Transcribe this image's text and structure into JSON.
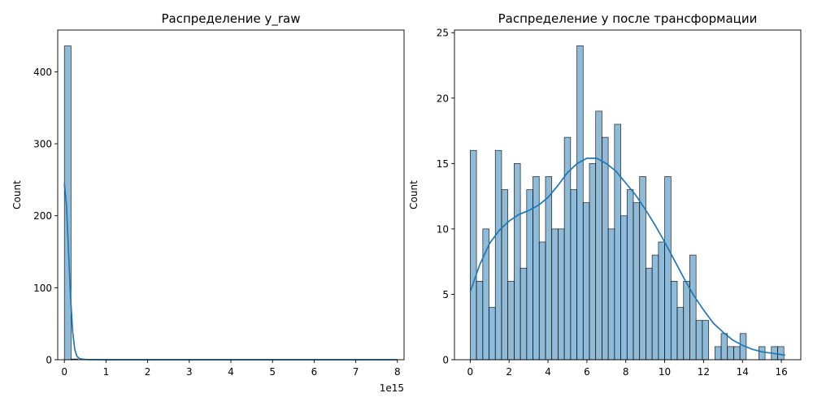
{
  "colors": {
    "bar": "#1f77b4",
    "kde": "#1f77b4"
  },
  "chart_data": [
    {
      "type": "bar",
      "title": "Распределение y_raw",
      "xlabel": "",
      "ylabel": "Count",
      "x_offset_label": "1e15",
      "xlim": [
        -0.16,
        8.16
      ],
      "ylim": [
        0,
        458
      ],
      "xticks": [
        0,
        1,
        2,
        3,
        4,
        5,
        6,
        7,
        8
      ],
      "xtick_labels": [
        "0",
        "1",
        "2",
        "3",
        "4",
        "5",
        "6",
        "7",
        "8"
      ],
      "yticks": [
        0,
        100,
        200,
        300,
        400
      ],
      "ytick_labels": [
        "0",
        "100",
        "200",
        "300",
        "400"
      ],
      "bins": [
        {
          "x0": 0.0,
          "x1": 0.16,
          "count": 436
        },
        {
          "x0": 0.16,
          "x1": 0.32,
          "count": 1
        }
      ],
      "kde": {
        "x": [
          0,
          0.05,
          0.1,
          0.15,
          0.2,
          0.25,
          0.3,
          0.35,
          0.4,
          0.5,
          0.6,
          0.8,
          1.0,
          2.0,
          4.0,
          6.0,
          8.0
        ],
        "y": [
          245,
          215,
          150,
          85,
          38,
          14,
          5,
          2,
          1,
          0.4,
          0.2,
          0.1,
          0,
          0,
          0,
          0,
          0
        ]
      }
    },
    {
      "type": "bar",
      "title": "Распределение y после трансформации",
      "xlabel": "",
      "ylabel": "Count",
      "xlim": [
        -0.81,
        17.0
      ],
      "ylim": [
        0,
        25.2
      ],
      "xticks": [
        0,
        2,
        4,
        6,
        8,
        10,
        12,
        14,
        16
      ],
      "xtick_labels": [
        "0",
        "2",
        "4",
        "6",
        "8",
        "10",
        "12",
        "14",
        "16"
      ],
      "yticks": [
        0,
        5,
        10,
        15,
        20,
        25
      ],
      "ytick_labels": [
        "0",
        "5",
        "10",
        "15",
        "20",
        "25"
      ],
      "bin_start": 0,
      "bin_width": 0.3226,
      "counts": [
        16,
        6,
        10,
        4,
        16,
        13,
        6,
        15,
        7,
        13,
        14,
        9,
        14,
        10,
        10,
        17,
        13,
        24,
        12,
        15,
        19,
        17,
        10,
        18,
        11,
        13,
        12,
        14,
        7,
        8,
        9,
        14,
        6,
        4,
        6,
        8,
        3,
        3,
        0,
        1,
        2,
        1,
        1,
        2,
        0,
        0,
        1,
        0,
        1,
        1
      ],
      "kde": {
        "x": [
          0,
          0.5,
          1,
          1.5,
          2,
          2.5,
          3,
          3.5,
          4,
          4.5,
          5,
          5.5,
          6,
          6.5,
          7,
          7.5,
          8,
          8.5,
          9,
          9.5,
          10,
          10.5,
          11,
          11.5,
          12,
          12.5,
          13,
          13.5,
          14,
          14.5,
          15,
          15.5,
          16.2
        ],
        "y": [
          5.2,
          7.3,
          8.9,
          9.9,
          10.6,
          11.1,
          11.4,
          11.8,
          12.4,
          13.3,
          14.3,
          15.0,
          15.4,
          15.4,
          15.0,
          14.4,
          13.5,
          12.6,
          11.5,
          10.3,
          9.0,
          7.6,
          6.2,
          4.9,
          3.8,
          2.8,
          2.1,
          1.5,
          1.1,
          0.8,
          0.6,
          0.5,
          0.35
        ]
      }
    }
  ]
}
